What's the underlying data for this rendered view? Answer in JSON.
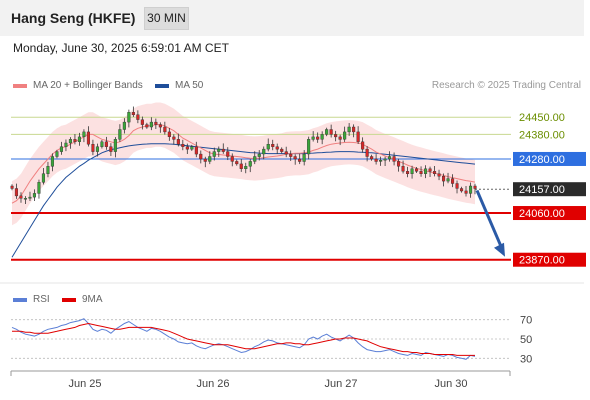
{
  "header": {
    "title": "Hang Seng (HKFE)",
    "timeframe": "30 MIN",
    "datetime": "Monday, June 30, 2025 6:59:01 AM CET"
  },
  "legend": {
    "bollinger_label": "MA 20 + Bollinger Bands",
    "bollinger_color": "#f08080",
    "ma50_label": "MA 50",
    "ma50_color": "#1f4e9a",
    "credit": "Research © 2025 Trading Central"
  },
  "rsi_legend": {
    "rsi_label": "RSI",
    "rsi_color": "#5b7fd6",
    "ma_label": "9MA",
    "ma_color": "#e00000"
  },
  "chart_data": [
    {
      "type": "candlestick",
      "ylim": [
        23820,
        24520
      ],
      "x_ticks": [
        "Jun 25",
        "Jun 26",
        "Jun 27",
        "Jun 30"
      ],
      "levels": [
        {
          "value": 24450,
          "label": "24450.00",
          "kind": "resistance",
          "color": "#c8d890"
        },
        {
          "value": 24380,
          "label": "24380.00",
          "kind": "resistance",
          "color": "#c8d890"
        },
        {
          "value": 24280,
          "label": "24280.00",
          "kind": "pivot",
          "color": "#2e6fe0"
        },
        {
          "value": 24157,
          "label": "24157.00",
          "kind": "last",
          "color": "#333333"
        },
        {
          "value": 24060,
          "label": "24060.00",
          "kind": "support",
          "color": "#e00000"
        },
        {
          "value": 23870,
          "label": "23870.00",
          "kind": "support",
          "color": "#e00000"
        }
      ],
      "close": [
        24160,
        24130,
        24120,
        24120,
        24125,
        24140,
        24185,
        24220,
        24250,
        24290,
        24310,
        24330,
        24345,
        24360,
        24350,
        24370,
        24390,
        24340,
        24310,
        24330,
        24350,
        24330,
        24310,
        24360,
        24400,
        24430,
        24470,
        24460,
        24440,
        24420,
        24410,
        24430,
        24420,
        24410,
        24390,
        24370,
        24360,
        24340,
        24330,
        24320,
        24330,
        24300,
        24280,
        24270,
        24290,
        24310,
        24320,
        24310,
        24290,
        24270,
        24260,
        24240,
        24250,
        24270,
        24290,
        24300,
        24320,
        24340,
        24330,
        24320,
        24310,
        24300,
        24290,
        24280,
        24270,
        24300,
        24360,
        24370,
        24360,
        24380,
        24400,
        24380,
        24370,
        24360,
        24390,
        24410,
        24390,
        24350,
        24320,
        24290,
        24280,
        24270,
        24275,
        24280,
        24290,
        24270,
        24250,
        24230,
        24220,
        24240,
        24230,
        24220,
        24240,
        24230,
        24220,
        24210,
        24190,
        24200,
        24180,
        24160,
        24150,
        24140,
        24170,
        24160
      ],
      "high_offset": 18,
      "low_offset": 18,
      "ma20": [
        24100,
        24110,
        24130,
        24160,
        24190,
        24215,
        24240,
        24260,
        24280,
        24300,
        24315,
        24325,
        24330,
        24340,
        24350,
        24360,
        24370,
        24380,
        24380,
        24370,
        24360,
        24355,
        24350,
        24345,
        24350,
        24360,
        24375,
        24395,
        24405,
        24410,
        24415,
        24415,
        24420,
        24420,
        24415,
        24405,
        24395,
        24380,
        24365,
        24355,
        24345,
        24335,
        24325,
        24315,
        24305,
        24300,
        24298,
        24296,
        24294,
        24292,
        24290,
        24288,
        24285,
        24283,
        24282,
        24283,
        24285,
        24288,
        24290,
        24292,
        24295,
        24300,
        24302,
        24303,
        24303,
        24305,
        24308,
        24315,
        24320,
        24328,
        24335,
        24340,
        24343,
        24345,
        24347,
        24348,
        24347,
        24345,
        24340,
        24330,
        24320,
        24308,
        24300,
        24292,
        24285,
        24278,
        24270,
        24263,
        24255,
        24248,
        24242,
        24237,
        24232,
        24227,
        24222,
        24218,
        24213,
        24208,
        24204,
        24200,
        24196,
        24192,
        24189,
        24186
      ],
      "bb_width": 90,
      "ma50": [
        23880,
        23910,
        23940,
        23970,
        24000,
        24030,
        24060,
        24090,
        24115,
        24140,
        24165,
        24185,
        24205,
        24220,
        24235,
        24250,
        24262,
        24275,
        24285,
        24295,
        24305,
        24312,
        24318,
        24322,
        24326,
        24330,
        24333,
        24336,
        24338,
        24340,
        24341,
        24342,
        24342,
        24342,
        24342,
        24341,
        24340,
        24338,
        24336,
        24334,
        24332,
        24330,
        24328,
        24326,
        24324,
        24322,
        24320,
        24318,
        24316,
        24314,
        24312,
        24310,
        24308,
        24306,
        24305,
        24304,
        24303,
        24302,
        24302,
        24302,
        24302,
        24302,
        24302,
        24302,
        24302,
        24302,
        24303,
        24304,
        24305,
        24306,
        24307,
        24308,
        24309,
        24310,
        24310,
        24310,
        24309,
        24308,
        24307,
        24306,
        24305,
        24303,
        24301,
        24299,
        24297,
        24295,
        24293,
        24291,
        24289,
        24287,
        24285,
        24283,
        24281,
        24279,
        24277,
        24275,
        24273,
        24271,
        24269,
        24267,
        24265,
        24263,
        24261,
        24259
      ]
    },
    {
      "type": "line",
      "title": "RSI",
      "ylim": [
        20,
        80
      ],
      "y_ticks": [
        70,
        50,
        30
      ],
      "rsi": [
        62,
        60,
        57,
        55,
        54,
        53,
        55,
        58,
        60,
        61,
        62,
        64,
        65,
        67,
        68,
        69,
        71,
        66,
        60,
        58,
        60,
        59,
        56,
        60,
        63,
        66,
        68,
        65,
        62,
        60,
        58,
        61,
        60,
        58,
        55,
        52,
        50,
        47,
        46,
        45,
        46,
        43,
        41,
        40,
        42,
        44,
        45,
        44,
        42,
        40,
        38,
        36,
        37,
        39,
        42,
        44,
        47,
        49,
        48,
        46,
        45,
        44,
        43,
        42,
        41,
        44,
        50,
        52,
        50,
        53,
        55,
        52,
        50,
        48,
        51,
        54,
        51,
        46,
        42,
        39,
        38,
        37,
        37,
        38,
        39,
        37,
        35,
        34,
        33,
        35,
        34,
        33,
        36,
        35,
        34,
        33,
        32,
        34,
        33,
        31,
        30,
        29,
        33,
        32
      ],
      "rsi_ma": [
        58,
        58,
        58,
        57,
        57,
        56,
        56,
        56,
        56,
        57,
        58,
        59,
        60,
        61,
        62,
        64,
        65,
        66,
        65,
        64,
        63,
        62,
        61,
        60,
        60,
        61,
        62,
        62,
        62,
        62,
        62,
        62,
        61,
        60,
        59,
        58,
        56,
        54,
        52,
        50,
        49,
        48,
        47,
        46,
        45,
        44,
        44,
        44,
        44,
        43,
        42,
        41,
        40,
        40,
        40,
        41,
        42,
        43,
        44,
        45,
        45,
        46,
        46,
        45,
        45,
        44,
        44,
        45,
        46,
        47,
        48,
        49,
        50,
        50,
        51,
        51,
        51,
        50,
        49,
        48,
        46,
        44,
        42,
        41,
        40,
        39,
        38,
        37,
        37,
        36,
        36,
        35,
        35,
        35,
        34,
        34,
        34,
        34,
        34,
        33,
        33,
        33,
        33,
        33
      ]
    }
  ]
}
